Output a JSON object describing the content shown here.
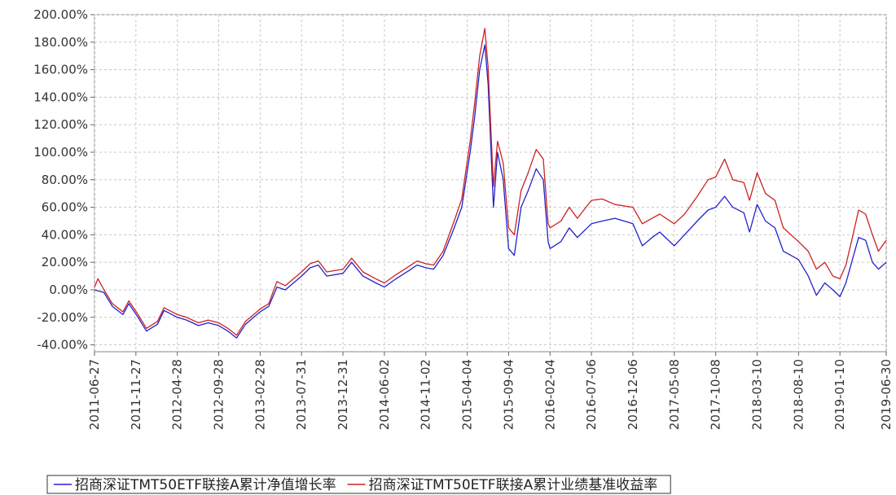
{
  "chart_data": {
    "type": "line",
    "title": "",
    "xlabel": "",
    "ylabel": "",
    "ylim": [
      -45,
      200
    ],
    "x_range": [
      "2011-06-27",
      "2019-06-30"
    ],
    "y_ticks": [
      -40,
      -20,
      0,
      20,
      40,
      60,
      80,
      100,
      120,
      140,
      160,
      180,
      200
    ],
    "y_tick_labels": [
      "-40.00%",
      "-20.00%",
      "0.00%",
      "20.00%",
      "40.00%",
      "60.00%",
      "80.00%",
      "100.00%",
      "120.00%",
      "140.00%",
      "160.00%",
      "180.00%",
      "200.00%"
    ],
    "x_ticks": [
      "2011-06-27",
      "2011-11-27",
      "2012-04-28",
      "2012-09-28",
      "2013-02-28",
      "2013-07-31",
      "2013-12-31",
      "2014-06-02",
      "2014-11-02",
      "2015-04-04",
      "2015-09-04",
      "2016-02-04",
      "2016-07-06",
      "2016-12-06",
      "2017-05-08",
      "2017-10-08",
      "2018-03-10",
      "2018-08-10",
      "2019-01-10",
      "2019-06-30"
    ],
    "grid": true,
    "legend_position": "bottom",
    "series": [
      {
        "name": "招商深证TMT50ETF联接A累计净值增长率",
        "color": "#2222cc",
        "points": [
          [
            "2011-06-27",
            0
          ],
          [
            "2011-08-01",
            -2
          ],
          [
            "2011-09-01",
            -12
          ],
          [
            "2011-10-10",
            -18
          ],
          [
            "2011-11-01",
            -10
          ],
          [
            "2011-12-05",
            -20
          ],
          [
            "2012-01-05",
            -30
          ],
          [
            "2012-02-15",
            -25
          ],
          [
            "2012-03-10",
            -15
          ],
          [
            "2012-04-28",
            -20
          ],
          [
            "2012-06-01",
            -22
          ],
          [
            "2012-07-15",
            -26
          ],
          [
            "2012-08-20",
            -24
          ],
          [
            "2012-09-28",
            -26
          ],
          [
            "2012-11-01",
            -30
          ],
          [
            "2012-12-03",
            -35
          ],
          [
            "2013-01-05",
            -25
          ],
          [
            "2013-02-28",
            -16
          ],
          [
            "2013-04-01",
            -12
          ],
          [
            "2013-05-01",
            2
          ],
          [
            "2013-06-01",
            0
          ],
          [
            "2013-07-31",
            10
          ],
          [
            "2013-09-01",
            16
          ],
          [
            "2013-10-01",
            18
          ],
          [
            "2013-11-01",
            10
          ],
          [
            "2013-12-31",
            12
          ],
          [
            "2014-02-01",
            20
          ],
          [
            "2014-03-15",
            10
          ],
          [
            "2014-05-01",
            5
          ],
          [
            "2014-06-02",
            2
          ],
          [
            "2014-07-15",
            8
          ],
          [
            "2014-09-01",
            14
          ],
          [
            "2014-10-01",
            18
          ],
          [
            "2014-11-02",
            16
          ],
          [
            "2014-12-01",
            15
          ],
          [
            "2015-01-05",
            25
          ],
          [
            "2015-02-15",
            45
          ],
          [
            "2015-03-15",
            60
          ],
          [
            "2015-04-15",
            100
          ],
          [
            "2015-05-01",
            125
          ],
          [
            "2015-05-20",
            160
          ],
          [
            "2015-06-08",
            178
          ],
          [
            "2015-06-20",
            150
          ],
          [
            "2015-07-10",
            60
          ],
          [
            "2015-07-25",
            100
          ],
          [
            "2015-08-15",
            80
          ],
          [
            "2015-09-04",
            30
          ],
          [
            "2015-09-25",
            25
          ],
          [
            "2015-10-20",
            60
          ],
          [
            "2015-11-15",
            72
          ],
          [
            "2015-12-15",
            88
          ],
          [
            "2016-01-10",
            80
          ],
          [
            "2016-01-28",
            35
          ],
          [
            "2016-02-04",
            30
          ],
          [
            "2016-03-15",
            35
          ],
          [
            "2016-04-15",
            45
          ],
          [
            "2016-05-15",
            38
          ],
          [
            "2016-07-06",
            48
          ],
          [
            "2016-08-15",
            50
          ],
          [
            "2016-10-01",
            52
          ],
          [
            "2016-12-06",
            48
          ],
          [
            "2017-01-10",
            32
          ],
          [
            "2017-02-15",
            38
          ],
          [
            "2017-03-15",
            42
          ],
          [
            "2017-05-08",
            32
          ],
          [
            "2017-06-15",
            40
          ],
          [
            "2017-08-01",
            50
          ],
          [
            "2017-09-10",
            58
          ],
          [
            "2017-10-08",
            60
          ],
          [
            "2017-11-10",
            68
          ],
          [
            "2017-12-10",
            60
          ],
          [
            "2018-01-20",
            56
          ],
          [
            "2018-02-10",
            42
          ],
          [
            "2018-03-10",
            62
          ],
          [
            "2018-04-10",
            50
          ],
          [
            "2018-05-15",
            45
          ],
          [
            "2018-06-15",
            28
          ],
          [
            "2018-08-10",
            22
          ],
          [
            "2018-09-15",
            10
          ],
          [
            "2018-10-15",
            -4
          ],
          [
            "2018-11-15",
            5
          ],
          [
            "2018-12-15",
            0
          ],
          [
            "2019-01-10",
            -5
          ],
          [
            "2019-02-01",
            5
          ],
          [
            "2019-02-25",
            22
          ],
          [
            "2019-03-20",
            38
          ],
          [
            "2019-04-15",
            36
          ],
          [
            "2019-05-10",
            20
          ],
          [
            "2019-06-01",
            15
          ],
          [
            "2019-06-30",
            20
          ]
        ]
      },
      {
        "name": "招商深证TMT50ETF联接A累计业绩基准收益率",
        "color": "#cc2222",
        "points": [
          [
            "2011-06-27",
            2
          ],
          [
            "2011-07-10",
            8
          ],
          [
            "2011-08-01",
            0
          ],
          [
            "2011-09-01",
            -10
          ],
          [
            "2011-10-10",
            -16
          ],
          [
            "2011-11-01",
            -8
          ],
          [
            "2011-12-05",
            -18
          ],
          [
            "2012-01-05",
            -28
          ],
          [
            "2012-02-15",
            -23
          ],
          [
            "2012-03-10",
            -13
          ],
          [
            "2012-04-28",
            -18
          ],
          [
            "2012-06-01",
            -20
          ],
          [
            "2012-07-15",
            -24
          ],
          [
            "2012-08-20",
            -22
          ],
          [
            "2012-09-28",
            -24
          ],
          [
            "2012-11-01",
            -28
          ],
          [
            "2012-12-03",
            -33
          ],
          [
            "2013-01-05",
            -23
          ],
          [
            "2013-02-28",
            -14
          ],
          [
            "2013-04-01",
            -10
          ],
          [
            "2013-05-01",
            6
          ],
          [
            "2013-06-01",
            3
          ],
          [
            "2013-07-31",
            13
          ],
          [
            "2013-09-01",
            19
          ],
          [
            "2013-10-01",
            21
          ],
          [
            "2013-11-01",
            13
          ],
          [
            "2013-12-31",
            15
          ],
          [
            "2014-02-01",
            23
          ],
          [
            "2014-03-15",
            13
          ],
          [
            "2014-05-01",
            8
          ],
          [
            "2014-06-02",
            5
          ],
          [
            "2014-07-15",
            11
          ],
          [
            "2014-09-01",
            17
          ],
          [
            "2014-10-01",
            21
          ],
          [
            "2014-11-02",
            19
          ],
          [
            "2014-12-01",
            18
          ],
          [
            "2015-01-05",
            28
          ],
          [
            "2015-02-15",
            50
          ],
          [
            "2015-03-15",
            66
          ],
          [
            "2015-04-15",
            108
          ],
          [
            "2015-05-01",
            135
          ],
          [
            "2015-05-20",
            170
          ],
          [
            "2015-06-08",
            190
          ],
          [
            "2015-06-20",
            162
          ],
          [
            "2015-07-10",
            75
          ],
          [
            "2015-07-25",
            108
          ],
          [
            "2015-08-15",
            92
          ],
          [
            "2015-09-04",
            45
          ],
          [
            "2015-09-25",
            40
          ],
          [
            "2015-10-20",
            72
          ],
          [
            "2015-11-15",
            85
          ],
          [
            "2015-12-15",
            102
          ],
          [
            "2016-01-10",
            95
          ],
          [
            "2016-01-28",
            48
          ],
          [
            "2016-02-04",
            45
          ],
          [
            "2016-03-15",
            50
          ],
          [
            "2016-04-15",
            60
          ],
          [
            "2016-05-15",
            52
          ],
          [
            "2016-07-06",
            65
          ],
          [
            "2016-08-15",
            66
          ],
          [
            "2016-10-01",
            62
          ],
          [
            "2016-12-06",
            60
          ],
          [
            "2017-01-10",
            48
          ],
          [
            "2017-02-15",
            52
          ],
          [
            "2017-03-15",
            55
          ],
          [
            "2017-05-08",
            48
          ],
          [
            "2017-06-15",
            55
          ],
          [
            "2017-08-01",
            68
          ],
          [
            "2017-09-10",
            80
          ],
          [
            "2017-10-08",
            82
          ],
          [
            "2017-11-10",
            95
          ],
          [
            "2017-12-10",
            80
          ],
          [
            "2018-01-20",
            78
          ],
          [
            "2018-02-10",
            65
          ],
          [
            "2018-03-10",
            85
          ],
          [
            "2018-04-10",
            70
          ],
          [
            "2018-05-15",
            65
          ],
          [
            "2018-06-15",
            45
          ],
          [
            "2018-08-10",
            35
          ],
          [
            "2018-09-15",
            28
          ],
          [
            "2018-10-15",
            15
          ],
          [
            "2018-11-15",
            20
          ],
          [
            "2018-12-15",
            10
          ],
          [
            "2019-01-10",
            8
          ],
          [
            "2019-02-01",
            18
          ],
          [
            "2019-02-25",
            38
          ],
          [
            "2019-03-20",
            58
          ],
          [
            "2019-04-15",
            55
          ],
          [
            "2019-05-10",
            40
          ],
          [
            "2019-06-01",
            28
          ],
          [
            "2019-06-30",
            36
          ]
        ]
      }
    ]
  }
}
